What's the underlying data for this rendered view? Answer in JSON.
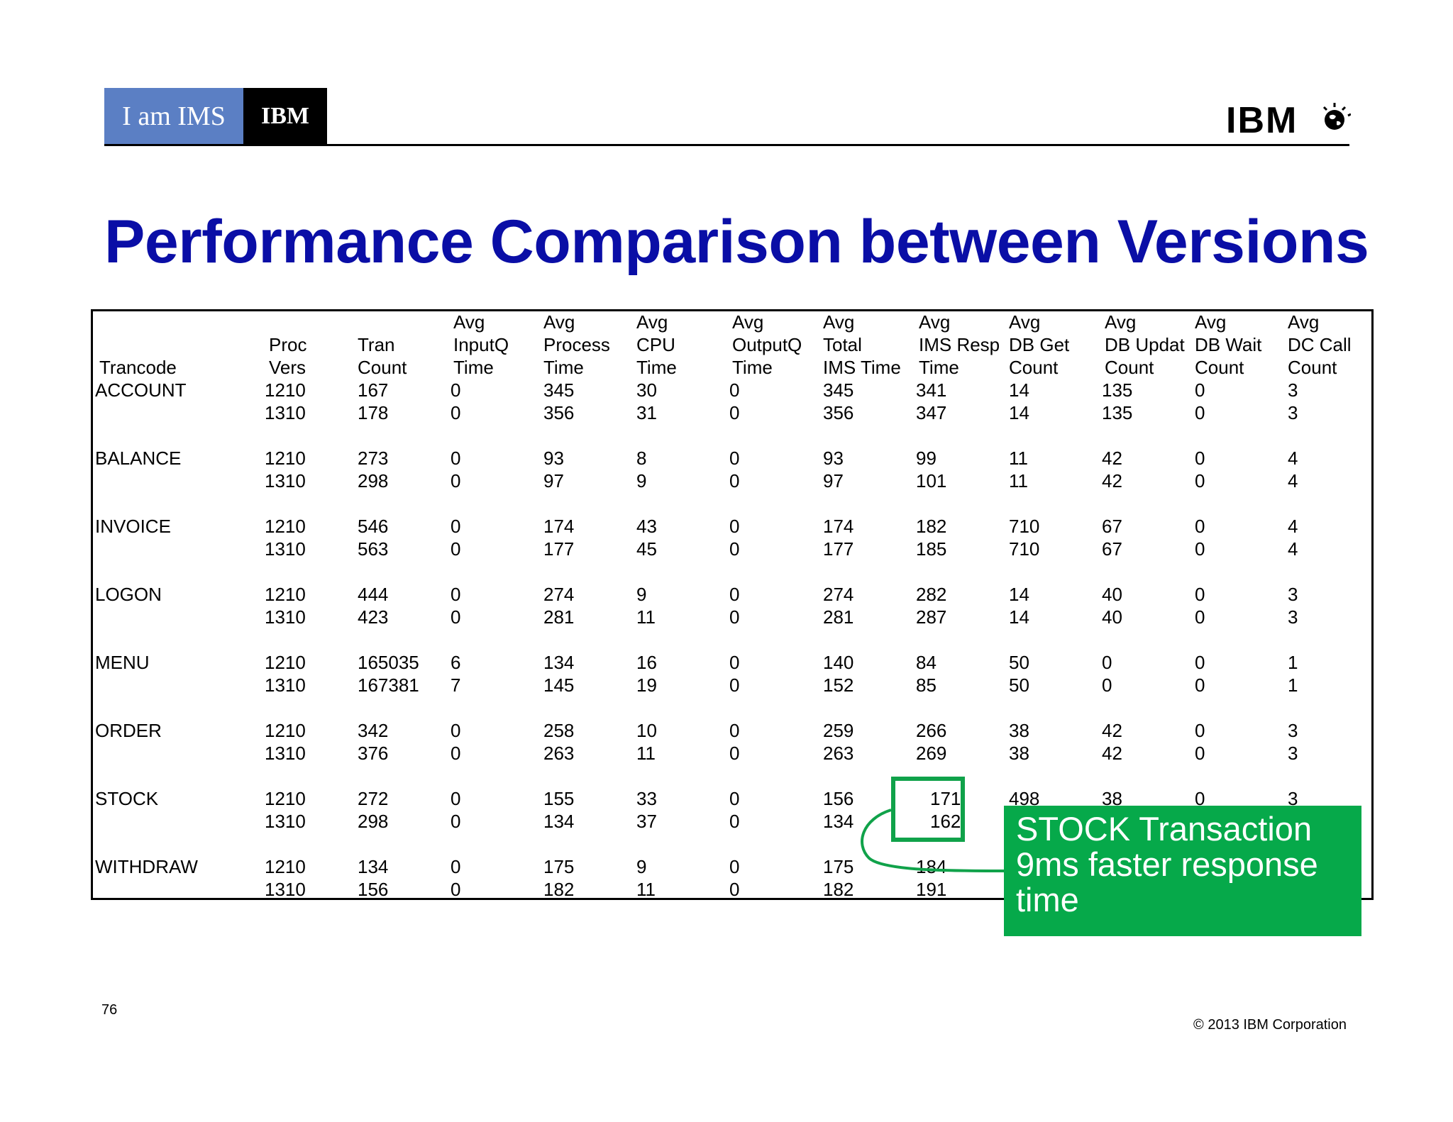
{
  "header": {
    "badge_text": "I am IMS",
    "badge_ibm": "IBM",
    "logo_text": "IBM"
  },
  "title": "Performance Comparison between Versions",
  "table": {
    "headers": [
      [
        "",
        "",
        "Trancode"
      ],
      [
        "",
        "Proc",
        "Vers"
      ],
      [
        "",
        "Tran",
        "Count"
      ],
      [
        "Avg",
        "InputQ",
        "Time"
      ],
      [
        "Avg",
        "Process",
        "Time"
      ],
      [
        "Avg",
        "CPU",
        "Time"
      ],
      [
        "Avg",
        "OutputQ",
        "Time"
      ],
      [
        "Avg",
        "Total",
        "IMS Time"
      ],
      [
        "Avg",
        "IMS Resp",
        "Time"
      ],
      [
        "Avg",
        "DB Get",
        "Count"
      ],
      [
        "Avg",
        "DB Updat",
        "Count"
      ],
      [
        "Avg",
        "DB Wait",
        "Count"
      ],
      [
        "Avg",
        "DC Call",
        "Count"
      ]
    ],
    "groups": [
      {
        "trancode": "ACCOUNT",
        "rows": [
          [
            "1210",
            "167",
            "0",
            "345",
            "30",
            "0",
            "345",
            "341",
            "14",
            "135",
            "0",
            "3"
          ],
          [
            "1310",
            "178",
            "0",
            "356",
            "31",
            "0",
            "356",
            "347",
            "14",
            "135",
            "0",
            "3"
          ]
        ]
      },
      {
        "trancode": "BALANCE",
        "rows": [
          [
            "1210",
            "273",
            "0",
            "93",
            "8",
            "0",
            "93",
            "99",
            "11",
            "42",
            "0",
            "4"
          ],
          [
            "1310",
            "298",
            "0",
            "97",
            "9",
            "0",
            "97",
            "101",
            "11",
            "42",
            "0",
            "4"
          ]
        ]
      },
      {
        "trancode": "INVOICE",
        "rows": [
          [
            "1210",
            "546",
            "0",
            "174",
            "43",
            "0",
            "174",
            "182",
            "710",
            "67",
            "0",
            "4"
          ],
          [
            "1310",
            "563",
            "0",
            "177",
            "45",
            "0",
            "177",
            "185",
            "710",
            "67",
            "0",
            "4"
          ]
        ]
      },
      {
        "trancode": "LOGON",
        "rows": [
          [
            "1210",
            "444",
            "0",
            "274",
            "9",
            "0",
            "274",
            "282",
            "14",
            "40",
            "0",
            "3"
          ],
          [
            "1310",
            "423",
            "0",
            "281",
            "11",
            "0",
            "281",
            "287",
            "14",
            "40",
            "0",
            "3"
          ]
        ]
      },
      {
        "trancode": "MENU",
        "rows": [
          [
            "1210",
            "165035",
            "6",
            "134",
            "16",
            "0",
            "140",
            "84",
            "50",
            "0",
            "0",
            "1"
          ],
          [
            "1310",
            "167381",
            "7",
            "145",
            "19",
            "0",
            "152",
            "85",
            "50",
            "0",
            "0",
            "1"
          ]
        ]
      },
      {
        "trancode": "ORDER",
        "rows": [
          [
            "1210",
            "342",
            "0",
            "258",
            "10",
            "0",
            "259",
            "266",
            "38",
            "42",
            "0",
            "3"
          ],
          [
            "1310",
            "376",
            "0",
            "263",
            "11",
            "0",
            "263",
            "269",
            "38",
            "42",
            "0",
            "3"
          ]
        ]
      },
      {
        "trancode": "STOCK",
        "rows": [
          [
            "1210",
            "272",
            "0",
            "155",
            "33",
            "0",
            "156",
            "171",
            "498",
            "38",
            "0",
            "3"
          ],
          [
            "1310",
            "298",
            "0",
            "134",
            "37",
            "0",
            "134",
            "162",
            "",
            "",
            "",
            ""
          ]
        ]
      },
      {
        "trancode": "WITHDRAW",
        "rows": [
          [
            "1210",
            "134",
            "0",
            "175",
            "9",
            "0",
            "175",
            "184",
            "",
            "",
            "",
            ""
          ],
          [
            "1310",
            "156",
            "0",
            "182",
            "11",
            "0",
            "182",
            "191",
            "",
            "",
            "",
            ""
          ]
        ]
      }
    ]
  },
  "callout": {
    "lines": [
      "STOCK Transaction",
      "9ms faster response",
      "time"
    ],
    "color": "#06a94a"
  },
  "footer": {
    "page_number": "76",
    "copyright": "© 2013 IBM Corporation"
  },
  "colors": {
    "title": "#0a0ea6",
    "badge_blue": "#5b7fc4",
    "highlight": "#10a24a"
  }
}
